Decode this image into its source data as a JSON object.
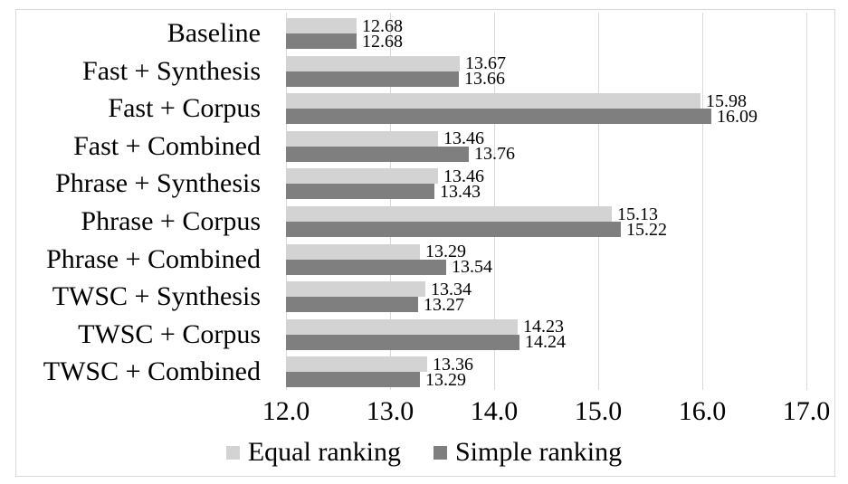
{
  "chart_data": {
    "type": "bar",
    "orientation": "horizontal",
    "title": "",
    "xlabel": "",
    "ylabel": "",
    "xlim": [
      12.0,
      17.0
    ],
    "x_tick_step": 1.0,
    "x_tick_labels": [
      "12.0",
      "13.0",
      "14.0",
      "15.0",
      "16.0",
      "17.0"
    ],
    "grid": true,
    "value_labels": true,
    "legend_position": "bottom",
    "categories": [
      "Baseline",
      "Fast + Synthesis",
      "Fast + Corpus",
      "Fast + Combined",
      "Phrase + Synthesis",
      "Phrase + Corpus",
      "Phrase + Combined",
      "TWSC + Synthesis",
      "TWSC + Corpus",
      "TWSC + Combined"
    ],
    "series": [
      {
        "name": "Equal ranking",
        "color": "#d3d3d3",
        "values": [
          12.68,
          13.67,
          15.98,
          13.46,
          13.46,
          15.13,
          13.29,
          13.34,
          14.23,
          13.36
        ]
      },
      {
        "name": "Simple ranking",
        "color": "#7f7f7f",
        "values": [
          12.68,
          13.66,
          16.09,
          13.76,
          13.43,
          15.22,
          13.54,
          13.27,
          14.24,
          13.29
        ]
      }
    ]
  },
  "colors": {
    "gridline": "#d9d9d9",
    "frame_border": "#d9d9d9",
    "text": "#000000",
    "background": "#ffffff"
  }
}
